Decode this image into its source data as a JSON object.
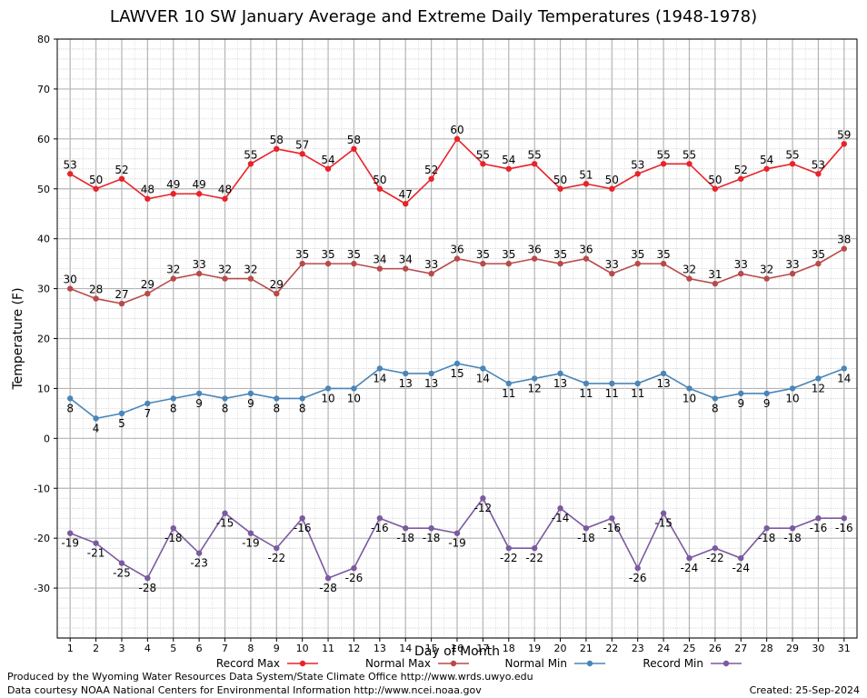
{
  "chart_data": {
    "type": "line",
    "title": "LAWVER 10 SW January Average and Extreme Daily Temperatures (1948-1978)",
    "xlabel": "Day of Month",
    "ylabel": "Temperature (F)",
    "ylim": [
      -40,
      80
    ],
    "yticks": [
      -30,
      -20,
      -10,
      0,
      10,
      20,
      30,
      40,
      50,
      60,
      70,
      80
    ],
    "x": [
      1,
      2,
      3,
      4,
      5,
      6,
      7,
      8,
      9,
      10,
      11,
      12,
      13,
      14,
      15,
      16,
      17,
      18,
      19,
      20,
      21,
      22,
      23,
      24,
      25,
      26,
      27,
      28,
      29,
      30,
      31
    ],
    "grid": true,
    "legend_position": "bottom",
    "series": [
      {
        "name": "Record Max",
        "color": "#e8232a",
        "values": [
          53,
          50,
          52,
          48,
          49,
          49,
          48,
          55,
          58,
          57,
          54,
          58,
          50,
          47,
          52,
          60,
          55,
          54,
          55,
          50,
          51,
          50,
          53,
          55,
          55,
          50,
          52,
          54,
          55,
          53,
          59
        ]
      },
      {
        "name": "Normal Max",
        "color": "#b94a4a",
        "values": [
          30,
          28,
          27,
          29,
          32,
          33,
          32,
          32,
          29,
          35,
          35,
          35,
          34,
          34,
          33,
          36,
          35,
          35,
          36,
          35,
          36,
          33,
          35,
          35,
          32,
          31,
          33,
          32,
          33,
          35,
          38
        ]
      },
      {
        "name": "Normal Min",
        "color": "#4a86b8",
        "values": [
          8,
          4,
          5,
          7,
          8,
          9,
          8,
          9,
          8,
          8,
          10,
          10,
          14,
          13,
          13,
          15,
          14,
          11,
          12,
          13,
          11,
          11,
          11,
          13,
          10,
          8,
          9,
          9,
          10,
          12,
          14
        ]
      },
      {
        "name": "Record Min",
        "color": "#7b5aa0",
        "values": [
          -19,
          -21,
          -25,
          -28,
          -18,
          -23,
          -15,
          -19,
          -22,
          -16,
          -28,
          -26,
          -16,
          -18,
          -18,
          -19,
          -12,
          -22,
          -22,
          -14,
          -18,
          -16,
          -26,
          -15,
          -24,
          -22,
          -24,
          -18,
          -18,
          -16,
          -16
        ]
      }
    ]
  },
  "footer": {
    "produced_by": "Produced by the Wyoming Water Resources Data System/State Climate Office http://www.wrds.uwyo.edu",
    "data_courtesy": "Data courtesy NOAA National Centers for Environmental Information http://www.ncei.noaa.gov",
    "created": "Created:  25-Sep-2024"
  }
}
